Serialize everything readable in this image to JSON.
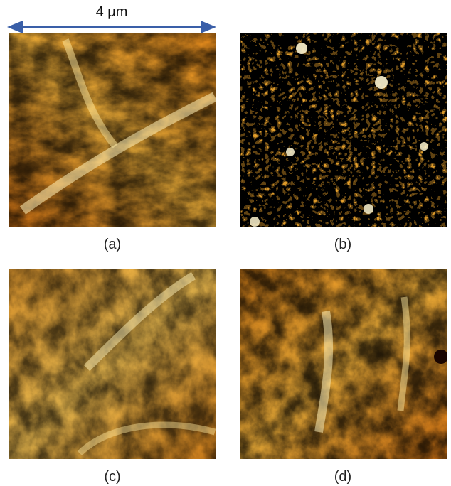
{
  "scale_bar": {
    "label": "4 μm"
  },
  "panels": [
    {
      "caption": "(a)",
      "texture": "branched-dendritic"
    },
    {
      "caption": "(b)",
      "texture": "granular-islands"
    },
    {
      "caption": "(c)",
      "texture": "branched-dendritic"
    },
    {
      "caption": "(d)",
      "texture": "branched-dendritic"
    }
  ],
  "colors": {
    "colormap": [
      "#1a0500",
      "#5a1800",
      "#b5470a",
      "#e88a1a",
      "#f7c04a",
      "#fff3c8"
    ],
    "scale_arrow": "#3a5fa8"
  }
}
